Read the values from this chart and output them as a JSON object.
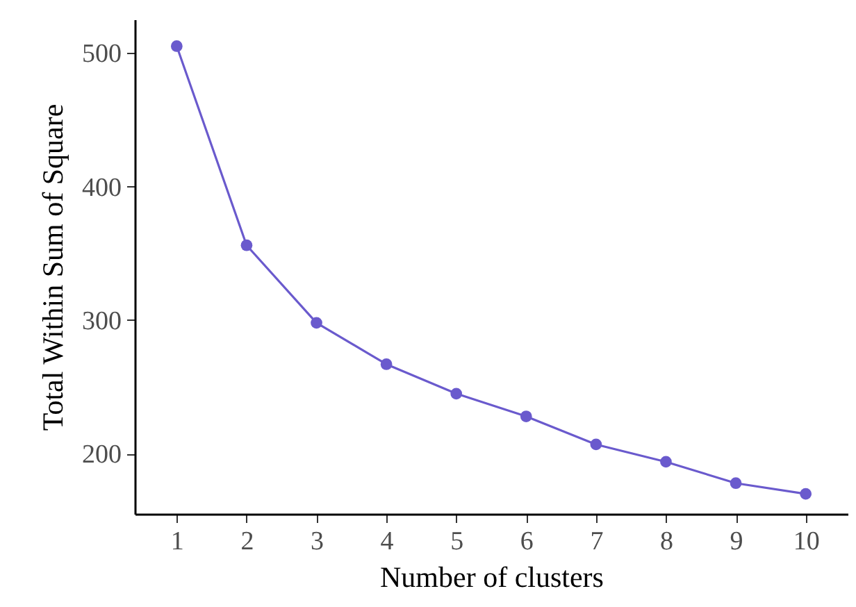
{
  "chart_data": {
    "type": "line",
    "xlabel": "Number of clusters",
    "ylabel": "Total Within Sum of Square",
    "categories": [
      "1",
      "2",
      "3",
      "4",
      "5",
      "6",
      "7",
      "8",
      "9",
      "10"
    ],
    "series": [
      {
        "color": "#6a5acd",
        "values": [
          505,
          356,
          298,
          267,
          245,
          228,
          207,
          194,
          178,
          170
        ]
      }
    ],
    "ylim": [
      155,
      525
    ],
    "yticks": [
      200,
      300,
      400,
      500
    ],
    "grid": false,
    "marker": "circle",
    "line_style": "solid"
  }
}
